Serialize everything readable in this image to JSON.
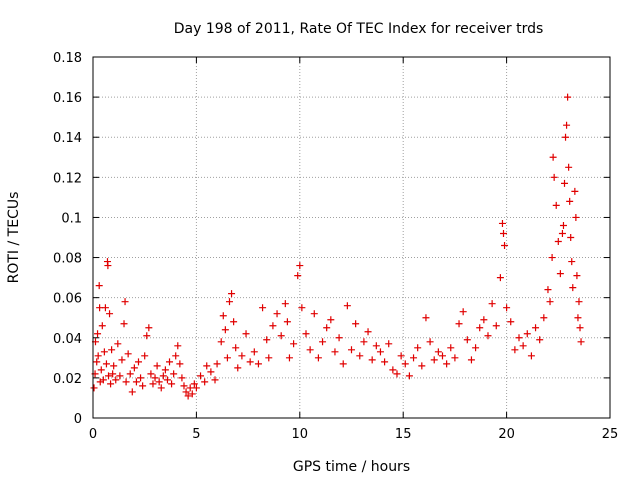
{
  "chart_data": {
    "type": "scatter",
    "title": "Day 198 of 2011, Rate Of TEC Index for receiver trds",
    "xlabel": "GPS time / hours",
    "ylabel": "ROTI / TECUs",
    "xlim": [
      0,
      25
    ],
    "ylim": [
      0,
      0.18
    ],
    "x_ticks": [
      0,
      5,
      10,
      15,
      20,
      25
    ],
    "x_tick_labels": [
      "0",
      "5",
      "10",
      "15",
      "20",
      "25"
    ],
    "y_ticks": [
      0,
      0.02,
      0.04,
      0.06,
      0.08,
      0.1,
      0.12,
      0.14,
      0.16,
      0.18
    ],
    "y_tick_labels": [
      "0",
      "0.02",
      "0.04",
      "0.06",
      "0.08",
      "0.1",
      "0.12",
      "0.14",
      "0.16",
      "0.18"
    ],
    "grid": true,
    "marker": "+",
    "color": "#e00000",
    "series": [
      {
        "points": [
          [
            0.05,
            0.015
          ],
          [
            0.1,
            0.022
          ],
          [
            0.12,
            0.038
          ],
          [
            0.18,
            0.028
          ],
          [
            0.22,
            0.042
          ],
          [
            0.25,
            0.031
          ],
          [
            0.3,
            0.066
          ],
          [
            0.32,
            0.055
          ],
          [
            0.35,
            0.018
          ],
          [
            0.4,
            0.024
          ],
          [
            0.45,
            0.046
          ],
          [
            0.5,
            0.019
          ],
          [
            0.55,
            0.033
          ],
          [
            0.6,
            0.055
          ],
          [
            0.65,
            0.027
          ],
          [
            0.7,
            0.078
          ],
          [
            0.72,
            0.076
          ],
          [
            0.75,
            0.021
          ],
          [
            0.8,
            0.052
          ],
          [
            0.85,
            0.017
          ],
          [
            0.9,
            0.034
          ],
          [
            0.95,
            0.022
          ],
          [
            1.0,
            0.026
          ],
          [
            1.1,
            0.019
          ],
          [
            1.2,
            0.037
          ],
          [
            1.3,
            0.021
          ],
          [
            1.4,
            0.029
          ],
          [
            1.5,
            0.047
          ],
          [
            1.55,
            0.058
          ],
          [
            1.6,
            0.018
          ],
          [
            1.7,
            0.032
          ],
          [
            1.8,
            0.022
          ],
          [
            1.9,
            0.013
          ],
          [
            2.0,
            0.025
          ],
          [
            2.1,
            0.018
          ],
          [
            2.2,
            0.028
          ],
          [
            2.3,
            0.02
          ],
          [
            2.4,
            0.016
          ],
          [
            2.5,
            0.031
          ],
          [
            2.6,
            0.041
          ],
          [
            2.7,
            0.045
          ],
          [
            2.8,
            0.022
          ],
          [
            2.9,
            0.017
          ],
          [
            3.0,
            0.02
          ],
          [
            3.1,
            0.026
          ],
          [
            3.2,
            0.018
          ],
          [
            3.3,
            0.015
          ],
          [
            3.4,
            0.021
          ],
          [
            3.5,
            0.024
          ],
          [
            3.6,
            0.019
          ],
          [
            3.7,
            0.028
          ],
          [
            3.8,
            0.017
          ],
          [
            3.9,
            0.022
          ],
          [
            4.0,
            0.031
          ],
          [
            4.1,
            0.036
          ],
          [
            4.2,
            0.027
          ],
          [
            4.3,
            0.02
          ],
          [
            4.4,
            0.016
          ],
          [
            4.5,
            0.013
          ],
          [
            4.6,
            0.011
          ],
          [
            4.7,
            0.015
          ],
          [
            4.8,
            0.012
          ],
          [
            4.9,
            0.017
          ],
          [
            5.0,
            0.015
          ],
          [
            5.2,
            0.021
          ],
          [
            5.4,
            0.018
          ],
          [
            5.5,
            0.026
          ],
          [
            5.7,
            0.023
          ],
          [
            5.9,
            0.019
          ],
          [
            6.0,
            0.027
          ],
          [
            6.2,
            0.038
          ],
          [
            6.3,
            0.051
          ],
          [
            6.4,
            0.044
          ],
          [
            6.5,
            0.03
          ],
          [
            6.6,
            0.058
          ],
          [
            6.7,
            0.062
          ],
          [
            6.8,
            0.048
          ],
          [
            6.9,
            0.035
          ],
          [
            7.0,
            0.025
          ],
          [
            7.2,
            0.031
          ],
          [
            7.4,
            0.042
          ],
          [
            7.6,
            0.028
          ],
          [
            7.8,
            0.033
          ],
          [
            8.0,
            0.027
          ],
          [
            8.2,
            0.055
          ],
          [
            8.4,
            0.039
          ],
          [
            8.5,
            0.03
          ],
          [
            8.7,
            0.046
          ],
          [
            8.9,
            0.052
          ],
          [
            9.1,
            0.041
          ],
          [
            9.3,
            0.057
          ],
          [
            9.4,
            0.048
          ],
          [
            9.5,
            0.03
          ],
          [
            9.7,
            0.037
          ],
          [
            9.9,
            0.071
          ],
          [
            10.0,
            0.076
          ],
          [
            10.1,
            0.055
          ],
          [
            10.3,
            0.042
          ],
          [
            10.5,
            0.034
          ],
          [
            10.7,
            0.052
          ],
          [
            10.9,
            0.03
          ],
          [
            11.1,
            0.038
          ],
          [
            11.3,
            0.045
          ],
          [
            11.5,
            0.049
          ],
          [
            11.7,
            0.033
          ],
          [
            11.9,
            0.04
          ],
          [
            12.1,
            0.027
          ],
          [
            12.3,
            0.056
          ],
          [
            12.5,
            0.034
          ],
          [
            12.7,
            0.047
          ],
          [
            12.9,
            0.031
          ],
          [
            13.1,
            0.038
          ],
          [
            13.3,
            0.043
          ],
          [
            13.5,
            0.029
          ],
          [
            13.7,
            0.036
          ],
          [
            13.9,
            0.033
          ],
          [
            14.1,
            0.028
          ],
          [
            14.3,
            0.037
          ],
          [
            14.5,
            0.024
          ],
          [
            14.7,
            0.022
          ],
          [
            14.9,
            0.031
          ],
          [
            15.1,
            0.027
          ],
          [
            15.3,
            0.021
          ],
          [
            15.5,
            0.03
          ],
          [
            15.7,
            0.035
          ],
          [
            15.9,
            0.026
          ],
          [
            16.1,
            0.05
          ],
          [
            16.3,
            0.038
          ],
          [
            16.5,
            0.029
          ],
          [
            16.7,
            0.033
          ],
          [
            16.9,
            0.031
          ],
          [
            17.1,
            0.027
          ],
          [
            17.3,
            0.035
          ],
          [
            17.5,
            0.03
          ],
          [
            17.7,
            0.047
          ],
          [
            17.9,
            0.053
          ],
          [
            18.1,
            0.039
          ],
          [
            18.3,
            0.029
          ],
          [
            18.5,
            0.035
          ],
          [
            18.7,
            0.045
          ],
          [
            18.9,
            0.049
          ],
          [
            19.1,
            0.041
          ],
          [
            19.3,
            0.057
          ],
          [
            19.5,
            0.046
          ],
          [
            19.7,
            0.07
          ],
          [
            19.8,
            0.097
          ],
          [
            19.85,
            0.092
          ],
          [
            19.9,
            0.086
          ],
          [
            20.0,
            0.055
          ],
          [
            20.2,
            0.048
          ],
          [
            20.4,
            0.034
          ],
          [
            20.6,
            0.04
          ],
          [
            20.8,
            0.036
          ],
          [
            21.0,
            0.042
          ],
          [
            21.2,
            0.031
          ],
          [
            21.4,
            0.045
          ],
          [
            21.6,
            0.039
          ],
          [
            21.8,
            0.05
          ],
          [
            22.0,
            0.064
          ],
          [
            22.1,
            0.058
          ],
          [
            22.2,
            0.08
          ],
          [
            22.25,
            0.13
          ],
          [
            22.3,
            0.12
          ],
          [
            22.4,
            0.106
          ],
          [
            22.5,
            0.088
          ],
          [
            22.6,
            0.072
          ],
          [
            22.7,
            0.092
          ],
          [
            22.75,
            0.096
          ],
          [
            22.8,
            0.117
          ],
          [
            22.85,
            0.14
          ],
          [
            22.9,
            0.146
          ],
          [
            22.95,
            0.16
          ],
          [
            23.0,
            0.125
          ],
          [
            23.05,
            0.108
          ],
          [
            23.1,
            0.09
          ],
          [
            23.15,
            0.078
          ],
          [
            23.2,
            0.065
          ],
          [
            23.3,
            0.113
          ],
          [
            23.35,
            0.1
          ],
          [
            23.4,
            0.071
          ],
          [
            23.45,
            0.05
          ],
          [
            23.5,
            0.058
          ],
          [
            23.55,
            0.045
          ],
          [
            23.6,
            0.038
          ]
        ]
      }
    ]
  }
}
